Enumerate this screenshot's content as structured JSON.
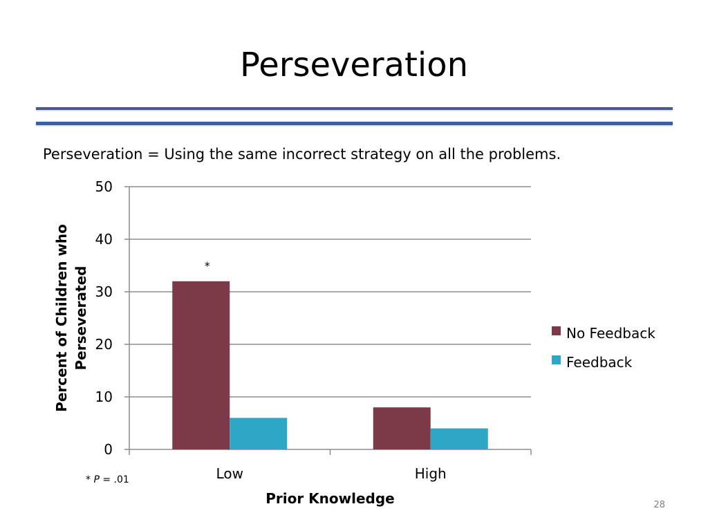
{
  "slide": {
    "title": "Perseveration",
    "definition": "Perseveration = Using the same incorrect strategy on all the problems.",
    "page_number": "28"
  },
  "chart_data": {
    "type": "bar",
    "categories": [
      "Low",
      "High"
    ],
    "series": [
      {
        "name": "No Feedback",
        "color": "#7c3a48",
        "values": [
          32,
          8
        ]
      },
      {
        "name": "Feedback",
        "color": "#2ea6c6",
        "values": [
          6,
          4
        ]
      }
    ],
    "xlabel": "Prior Knowledge",
    "ylabel_lines": [
      "Percent of Children who",
      "Perseverated"
    ],
    "ylim": [
      0,
      50
    ],
    "yticks": [
      0,
      10,
      20,
      30,
      40,
      50
    ],
    "grid": true,
    "legend_position": "right",
    "annotations": [
      {
        "text": "*",
        "category": "Low",
        "series": "No Feedback"
      }
    ],
    "footnote": {
      "prefix": "* ",
      "italic": "P",
      "suffix": " = .01"
    }
  }
}
